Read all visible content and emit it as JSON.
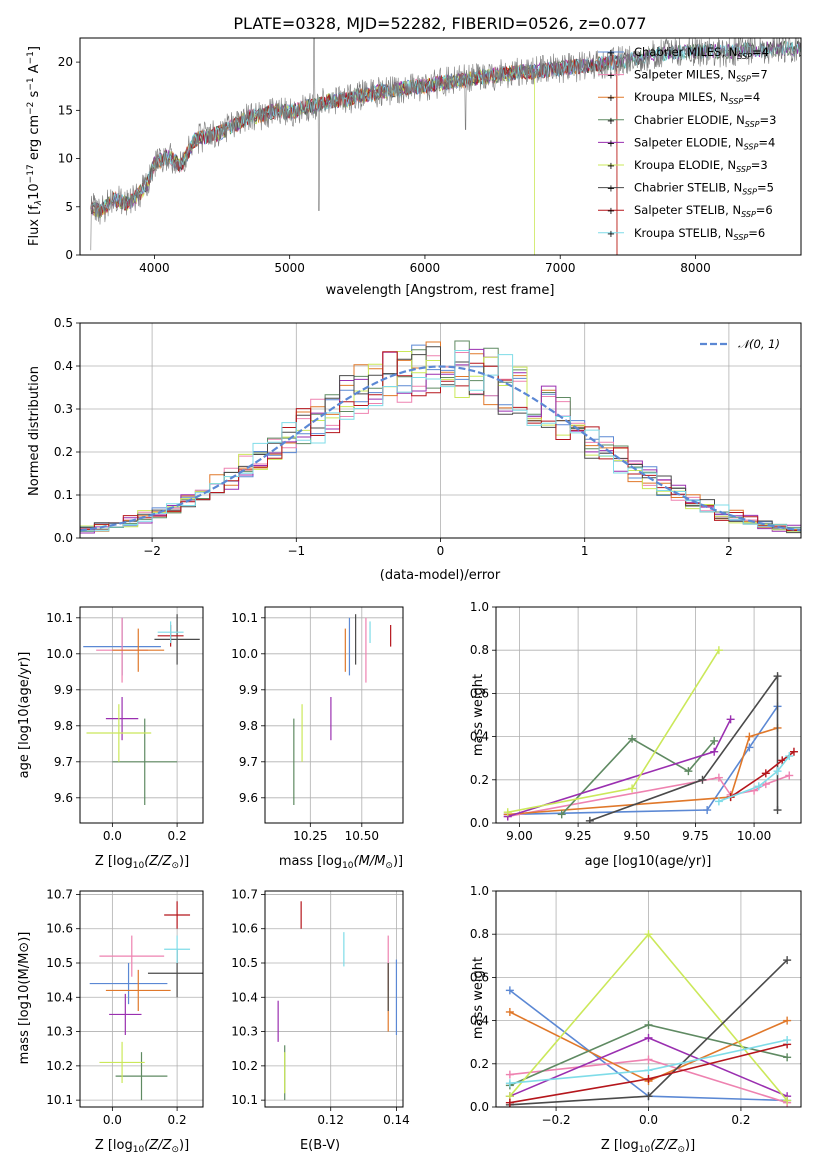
{
  "title": "PLATE=0328, MJD=52282, FIBERID=0526, z=0.077",
  "colors": {
    "chabrier_miles": "#5b88d4",
    "salpeter_miles": "#ee82b0",
    "kroupa_miles": "#e0782a",
    "chabrier_elodie": "#5f8a62",
    "salpeter_elodie": "#9a2fb0",
    "kroupa_elodie": "#cbe85a",
    "chabrier_stelib": "#4a4a4a",
    "salpeter_stelib": "#b5161c",
    "kroupa_stelib": "#7fdce8",
    "gauss": "#5b88d4",
    "grid": "#b0b0b0"
  },
  "chart_data": [
    {
      "id": "spectrum",
      "type": "line",
      "title": "PLATE=0328, MJD=52282, FIBERID=0526, z=0.077",
      "xlabel": "wavelength [Angstrom, rest frame]",
      "ylabel_main": "Flux [f",
      "ylabel_sub": "λ",
      "ylabel_mid": "10",
      "ylabel_sup1": "−17",
      "ylabel_rest": " erg cm",
      "ylabel_sup2": "−2",
      "ylabel_rest2": " s",
      "ylabel_sup3": "−1",
      "ylabel_rest3": " A",
      "ylabel_sup4": "−1",
      "ylabel_end": "]",
      "xlim": [
        3450,
        8780
      ],
      "ylim": [
        0,
        22.5
      ],
      "xticks": [
        4000,
        5000,
        6000,
        7000,
        8000
      ],
      "yticks": [
        0,
        5,
        10,
        15,
        20
      ],
      "grid": false,
      "legend_position": "top-right",
      "x": [
        3530,
        3600,
        3700,
        3800,
        3900,
        3950,
        4000,
        4100,
        4200,
        4300,
        4400,
        4500,
        4600,
        4700,
        4800,
        4900,
        5000,
        5100,
        5200,
        5300,
        5400,
        5500,
        5600,
        5700,
        5800,
        5900,
        6000,
        6100,
        6200,
        6300,
        6400,
        6500,
        6600,
        6700,
        6800,
        6900,
        7000,
        7100,
        7200,
        7300,
        7400,
        7500,
        7600,
        7700,
        7800,
        7900,
        8000,
        8100,
        8200,
        8300,
        8400,
        8500,
        8600,
        8700
      ],
      "y": [
        5.0,
        4.5,
        5.8,
        5.3,
        6.5,
        7.5,
        9.5,
        10.2,
        9.3,
        12.0,
        12.3,
        12.8,
        13.5,
        14.3,
        14.5,
        15.0,
        14.8,
        15.3,
        15.5,
        16.0,
        16.0,
        16.5,
        16.7,
        17.0,
        17.2,
        17.4,
        17.5,
        17.8,
        18.0,
        18.2,
        18.4,
        18.6,
        18.8,
        19.0,
        19.0,
        19.2,
        19.4,
        19.5,
        19.6,
        19.8,
        20.0,
        20.2,
        20.5,
        20.8,
        21.0,
        21.0,
        21.1,
        21.2,
        21.0,
        21.2,
        21.3,
        21.3,
        21.4,
        21.4
      ],
      "legend": [
        {
          "label": "Chabrier MILES, N",
          "sub": "SSP",
          "eq": "=4",
          "color": "#5b88d4"
        },
        {
          "label": "Salpeter MILES, N",
          "sub": "SSP",
          "eq": "=7",
          "color": "#ee82b0"
        },
        {
          "label": "Kroupa MILES, N",
          "sub": "SSP",
          "eq": "=4",
          "color": "#e0782a"
        },
        {
          "label": "Chabrier ELODIE, N",
          "sub": "SSP",
          "eq": "=3",
          "color": "#5f8a62"
        },
        {
          "label": "Salpeter ELODIE, N",
          "sub": "SSP",
          "eq": "=4",
          "color": "#9a2fb0"
        },
        {
          "label": "Kroupa ELODIE, N",
          "sub": "SSP",
          "eq": "=3",
          "color": "#cbe85a"
        },
        {
          "label": "Chabrier STELIB, N",
          "sub": "SSP",
          "eq": "=5",
          "color": "#4a4a4a"
        },
        {
          "label": "Salpeter STELIB, N",
          "sub": "SSP",
          "eq": "=6",
          "color": "#b5161c"
        },
        {
          "label": "Kroupa STELIB, N",
          "sub": "SSP",
          "eq": "=6",
          "color": "#7fdce8"
        }
      ]
    },
    {
      "id": "residuals",
      "type": "line",
      "xlabel": "(data-model)/error",
      "ylabel": "Normed distribution",
      "xlim": [
        -2.5,
        2.5
      ],
      "ylim": [
        0,
        0.5
      ],
      "xticks": [
        -2,
        -1,
        0,
        1,
        2
      ],
      "xticklabels": [
        "−2",
        "−1",
        "0",
        "1",
        "2"
      ],
      "yticks": [
        0.0,
        0.1,
        0.2,
        0.3,
        0.4,
        0.5
      ],
      "yticklabels": [
        "0.0",
        "0.1",
        "0.2",
        "0.3",
        "0.4",
        "0.5"
      ],
      "grid": true,
      "legend_position": "top-right",
      "legend_label": "𝒩(0, 1)",
      "series_style": "step histograms, one per model",
      "bin_width": 0.1
    },
    {
      "id": "age-vs-z",
      "type": "scatter",
      "xlabel": "Z [log",
      "xlabel_sub": "10",
      "xlabel_end": "(Z/Z",
      "xlabel_sun": "⊙",
      "xlabel_close": ")]",
      "ylabel": "age  [log10(age/yr)]",
      "xlim": [
        -0.1,
        0.28
      ],
      "ylim": [
        9.53,
        10.13
      ],
      "xticks": [
        0.0,
        0.2
      ],
      "xticklabels": [
        "0.0",
        "0.2"
      ],
      "yticks": [
        9.6,
        9.7,
        9.8,
        9.9,
        10.0,
        10.1
      ],
      "yticklabels": [
        "9.6",
        "9.7",
        "9.8",
        "9.9",
        "10.0",
        "10.1"
      ],
      "grid": true,
      "points": [
        {
          "model": "Chabrier MILES",
          "x": 0.03,
          "y": 10.02,
          "xerr": 0.12,
          "yerr": 0.08
        },
        {
          "model": "Salpeter MILES",
          "x": 0.03,
          "y": 10.01,
          "xerr": 0.08,
          "yerr": 0.09
        },
        {
          "model": "Kroupa MILES",
          "x": 0.08,
          "y": 10.01,
          "xerr": 0.08,
          "yerr": 0.06
        },
        {
          "model": "Chabrier ELODIE",
          "x": 0.1,
          "y": 9.7,
          "xerr": 0.1,
          "yerr": 0.12
        },
        {
          "model": "Salpeter ELODIE",
          "x": 0.03,
          "y": 9.82,
          "xerr": 0.05,
          "yerr": 0.06
        },
        {
          "model": "Kroupa ELODIE",
          "x": 0.02,
          "y": 9.78,
          "xerr": 0.1,
          "yerr": 0.08
        },
        {
          "model": "Chabrier STELIB",
          "x": 0.2,
          "y": 10.04,
          "xerr": 0.07,
          "yerr": 0.07
        },
        {
          "model": "Salpeter STELIB",
          "x": 0.18,
          "y": 10.05,
          "xerr": 0.04,
          "yerr": 0.03
        },
        {
          "model": "Kroupa STELIB",
          "x": 0.18,
          "y": 10.06,
          "xerr": 0.04,
          "yerr": 0.03
        }
      ]
    },
    {
      "id": "age-vs-mass",
      "type": "scatter",
      "xlabel": "mass [log",
      "xlabel_sub": "10",
      "xlabel_end": "(M/M",
      "xlabel_sun": "⊙",
      "xlabel_close": ")]",
      "xlim": [
        10.03,
        10.7
      ],
      "ylim": [
        9.53,
        10.13
      ],
      "xticks": [
        10.25,
        10.5
      ],
      "xticklabels": [
        "10.25",
        "10.50"
      ],
      "yticks": [
        9.6,
        9.7,
        9.8,
        9.9,
        10.0,
        10.1
      ],
      "yticklabels": [
        "9.6",
        "9.7",
        "9.8",
        "9.9",
        "10.0",
        "10.1"
      ],
      "grid": true,
      "points": [
        {
          "model": "Chabrier MILES",
          "x": 10.44,
          "y": 10.02,
          "yerr": 0.08
        },
        {
          "model": "Salpeter MILES",
          "x": 10.52,
          "y": 10.01,
          "yerr": 0.09
        },
        {
          "model": "Kroupa MILES",
          "x": 10.42,
          "y": 10.01,
          "yerr": 0.06
        },
        {
          "model": "Chabrier ELODIE",
          "x": 10.17,
          "y": 9.7,
          "yerr": 0.12
        },
        {
          "model": "Salpeter ELODIE",
          "x": 10.35,
          "y": 9.82,
          "yerr": 0.06
        },
        {
          "model": "Kroupa ELODIE",
          "x": 10.21,
          "y": 9.78,
          "yerr": 0.08
        },
        {
          "model": "Chabrier STELIB",
          "x": 10.47,
          "y": 10.04,
          "yerr": 0.07
        },
        {
          "model": "Salpeter STELIB",
          "x": 10.64,
          "y": 10.05,
          "yerr": 0.03
        },
        {
          "model": "Kroupa STELIB",
          "x": 10.54,
          "y": 10.06,
          "yerr": 0.03
        }
      ]
    },
    {
      "id": "massweight-vs-age",
      "type": "line",
      "xlabel": "age  [log10(age/yr)]",
      "ylabel": "mass weight",
      "xlim": [
        8.9,
        10.2
      ],
      "ylim": [
        0,
        1.0
      ],
      "xticks": [
        9.0,
        9.25,
        9.5,
        9.75,
        10.0
      ],
      "xticklabels": [
        "9.00",
        "9.25",
        "9.50",
        "9.75",
        "10.00"
      ],
      "yticks": [
        0.0,
        0.2,
        0.4,
        0.6,
        0.8,
        1.0
      ],
      "yticklabels": [
        "0.0",
        "0.2",
        "0.4",
        "0.6",
        "0.8",
        "1.0"
      ],
      "grid": true,
      "series": [
        {
          "name": "Chabrier MILES",
          "x": [
            8.95,
            9.8,
            9.98,
            10.1
          ],
          "y": [
            0.04,
            0.06,
            0.35,
            0.54
          ]
        },
        {
          "name": "Salpeter MILES",
          "x": [
            8.95,
            9.85,
            9.9,
            10.0,
            10.05,
            10.15
          ],
          "y": [
            0.03,
            0.21,
            0.13,
            0.15,
            0.18,
            0.22
          ]
        },
        {
          "name": "Kroupa MILES",
          "x": [
            8.95,
            9.9,
            9.98,
            10.1
          ],
          "y": [
            0.04,
            0.12,
            0.4,
            0.44
          ]
        },
        {
          "name": "Chabrier ELODIE",
          "x": [
            9.18,
            9.48,
            9.72,
            9.83
          ],
          "y": [
            0.04,
            0.39,
            0.24,
            0.38
          ]
        },
        {
          "name": "Salpeter ELODIE",
          "x": [
            8.95,
            9.83,
            9.9
          ],
          "y": [
            0.03,
            0.33,
            0.48
          ]
        },
        {
          "name": "Kroupa ELODIE",
          "x": [
            8.95,
            9.48,
            9.85
          ],
          "y": [
            0.05,
            0.16,
            0.8
          ]
        },
        {
          "name": "Chabrier STELIB",
          "x": [
            9.3,
            9.78,
            10.1,
            10.1
          ],
          "y": [
            0.01,
            0.2,
            0.68,
            0.06
          ]
        },
        {
          "name": "Salpeter STELIB",
          "x": [
            9.9,
            10.05,
            10.12,
            10.17
          ],
          "y": [
            0.12,
            0.23,
            0.29,
            0.33
          ]
        },
        {
          "name": "Kroupa STELIB",
          "x": [
            9.85,
            10.02,
            10.1,
            10.15
          ],
          "y": [
            0.1,
            0.17,
            0.24,
            0.31
          ]
        }
      ]
    },
    {
      "id": "mass-vs-z",
      "type": "scatter",
      "xlabel": "Z [log",
      "xlabel_sub": "10",
      "xlabel_end": "(Z/Z",
      "xlabel_sun": "⊙",
      "xlabel_close": ")]",
      "ylabel": "mass [log10(M/M⊙)]",
      "xlim": [
        -0.1,
        0.28
      ],
      "ylim": [
        10.08,
        10.71
      ],
      "xticks": [
        0.0,
        0.2
      ],
      "xticklabels": [
        "0.0",
        "0.2"
      ],
      "yticks": [
        10.1,
        10.2,
        10.3,
        10.4,
        10.5,
        10.6,
        10.7
      ],
      "yticklabels": [
        "10.1",
        "10.2",
        "10.3",
        "10.4",
        "10.5",
        "10.6",
        "10.7"
      ],
      "grid": true,
      "points": [
        {
          "model": "Chabrier MILES",
          "x": 0.05,
          "y": 10.44,
          "xerr": 0.12,
          "yerr": 0.06
        },
        {
          "model": "Salpeter MILES",
          "x": 0.06,
          "y": 10.52,
          "xerr": 0.1,
          "yerr": 0.06
        },
        {
          "model": "Kroupa MILES",
          "x": 0.08,
          "y": 10.42,
          "xerr": 0.1,
          "yerr": 0.06
        },
        {
          "model": "Chabrier ELODIE",
          "x": 0.09,
          "y": 10.17,
          "xerr": 0.08,
          "yerr": 0.07
        },
        {
          "model": "Salpeter ELODIE",
          "x": 0.04,
          "y": 10.35,
          "xerr": 0.05,
          "yerr": 0.06
        },
        {
          "model": "Kroupa ELODIE",
          "x": 0.03,
          "y": 10.21,
          "xerr": 0.07,
          "yerr": 0.06
        },
        {
          "model": "Chabrier STELIB",
          "x": 0.2,
          "y": 10.47,
          "xerr": 0.09,
          "yerr": 0.07
        },
        {
          "model": "Salpeter STELIB",
          "x": 0.2,
          "y": 10.64,
          "xerr": 0.04,
          "yerr": 0.04
        },
        {
          "model": "Kroupa STELIB",
          "x": 0.2,
          "y": 10.54,
          "xerr": 0.04,
          "yerr": 0.04
        }
      ]
    },
    {
      "id": "mass-vs-ebv",
      "type": "scatter",
      "xlabel": "E(B-V)",
      "xlim": [
        0.1,
        0.142
      ],
      "ylim": [
        10.08,
        10.71
      ],
      "xticks": [
        0.12,
        0.14
      ],
      "xticklabels": [
        "0.12",
        "0.14"
      ],
      "yticks": [
        10.1,
        10.2,
        10.3,
        10.4,
        10.5,
        10.6,
        10.7
      ],
      "yticklabels": [
        "10.1",
        "10.2",
        "10.3",
        "10.4",
        "10.5",
        "10.6",
        "10.7"
      ],
      "grid": true,
      "points": [
        {
          "model": "Chabrier MILES",
          "x": 0.14,
          "y": 10.4,
          "yerr": 0.11
        },
        {
          "model": "Salpeter MILES",
          "x": 0.1375,
          "y": 10.5,
          "yerr": 0.08
        },
        {
          "model": "Kroupa MILES",
          "x": 0.1375,
          "y": 10.4,
          "yerr": 0.1
        },
        {
          "model": "Chabrier ELODIE",
          "x": 0.106,
          "y": 10.18,
          "yerr": 0.08
        },
        {
          "model": "Salpeter ELODIE",
          "x": 0.104,
          "y": 10.33,
          "yerr": 0.06
        },
        {
          "model": "Kroupa ELODIE",
          "x": 0.106,
          "y": 10.18,
          "yerr": 0.06
        },
        {
          "model": "Chabrier STELIB",
          "x": 0.1375,
          "y": 10.43,
          "yerr": 0.07
        },
        {
          "model": "Salpeter STELIB",
          "x": 0.111,
          "y": 10.64,
          "yerr": 0.04
        },
        {
          "model": "Kroupa STELIB",
          "x": 0.124,
          "y": 10.54,
          "yerr": 0.05
        }
      ]
    },
    {
      "id": "massweight-vs-z",
      "type": "line",
      "xlabel": "Z [log",
      "xlabel_sub": "10",
      "xlabel_end": "(Z/Z",
      "xlabel_sun": "⊙",
      "xlabel_close": ")]",
      "ylabel": "mass weight",
      "xlim": [
        -0.33,
        0.33
      ],
      "ylim": [
        0,
        1.0
      ],
      "xticks": [
        -0.2,
        0.0,
        0.2
      ],
      "xticklabels": [
        "−0.2",
        "0.0",
        "0.2"
      ],
      "yticks": [
        0.0,
        0.2,
        0.4,
        0.6,
        0.8,
        1.0
      ],
      "yticklabels": [
        "0.0",
        "0.2",
        "0.4",
        "0.6",
        "0.8",
        "1.0"
      ],
      "grid": true,
      "series": [
        {
          "name": "Chabrier MILES",
          "x": [
            -0.3,
            0.0,
            0.3
          ],
          "y": [
            0.54,
            0.05,
            0.03
          ]
        },
        {
          "name": "Salpeter MILES",
          "x": [
            -0.3,
            0.0,
            0.3
          ],
          "y": [
            0.15,
            0.22,
            0.02
          ]
        },
        {
          "name": "Kroupa MILES",
          "x": [
            -0.3,
            0.0,
            0.3
          ],
          "y": [
            0.44,
            0.12,
            0.4
          ]
        },
        {
          "name": "Chabrier ELODIE",
          "x": [
            -0.3,
            0.0,
            0.3
          ],
          "y": [
            0.1,
            0.38,
            0.23
          ]
        },
        {
          "name": "Salpeter ELODIE",
          "x": [
            -0.3,
            0.0,
            0.3
          ],
          "y": [
            0.05,
            0.32,
            0.05
          ]
        },
        {
          "name": "Kroupa ELODIE",
          "x": [
            -0.3,
            0.0,
            0.3
          ],
          "y": [
            0.05,
            0.8,
            0.03
          ]
        },
        {
          "name": "Chabrier STELIB",
          "x": [
            -0.3,
            0.0,
            0.3
          ],
          "y": [
            0.01,
            0.05,
            0.68
          ]
        },
        {
          "name": "Salpeter STELIB",
          "x": [
            -0.3,
            0.0,
            0.3
          ],
          "y": [
            0.02,
            0.13,
            0.29
          ]
        },
        {
          "name": "Kroupa STELIB",
          "x": [
            -0.3,
            0.0,
            0.3
          ],
          "y": [
            0.11,
            0.17,
            0.31
          ]
        }
      ]
    }
  ]
}
